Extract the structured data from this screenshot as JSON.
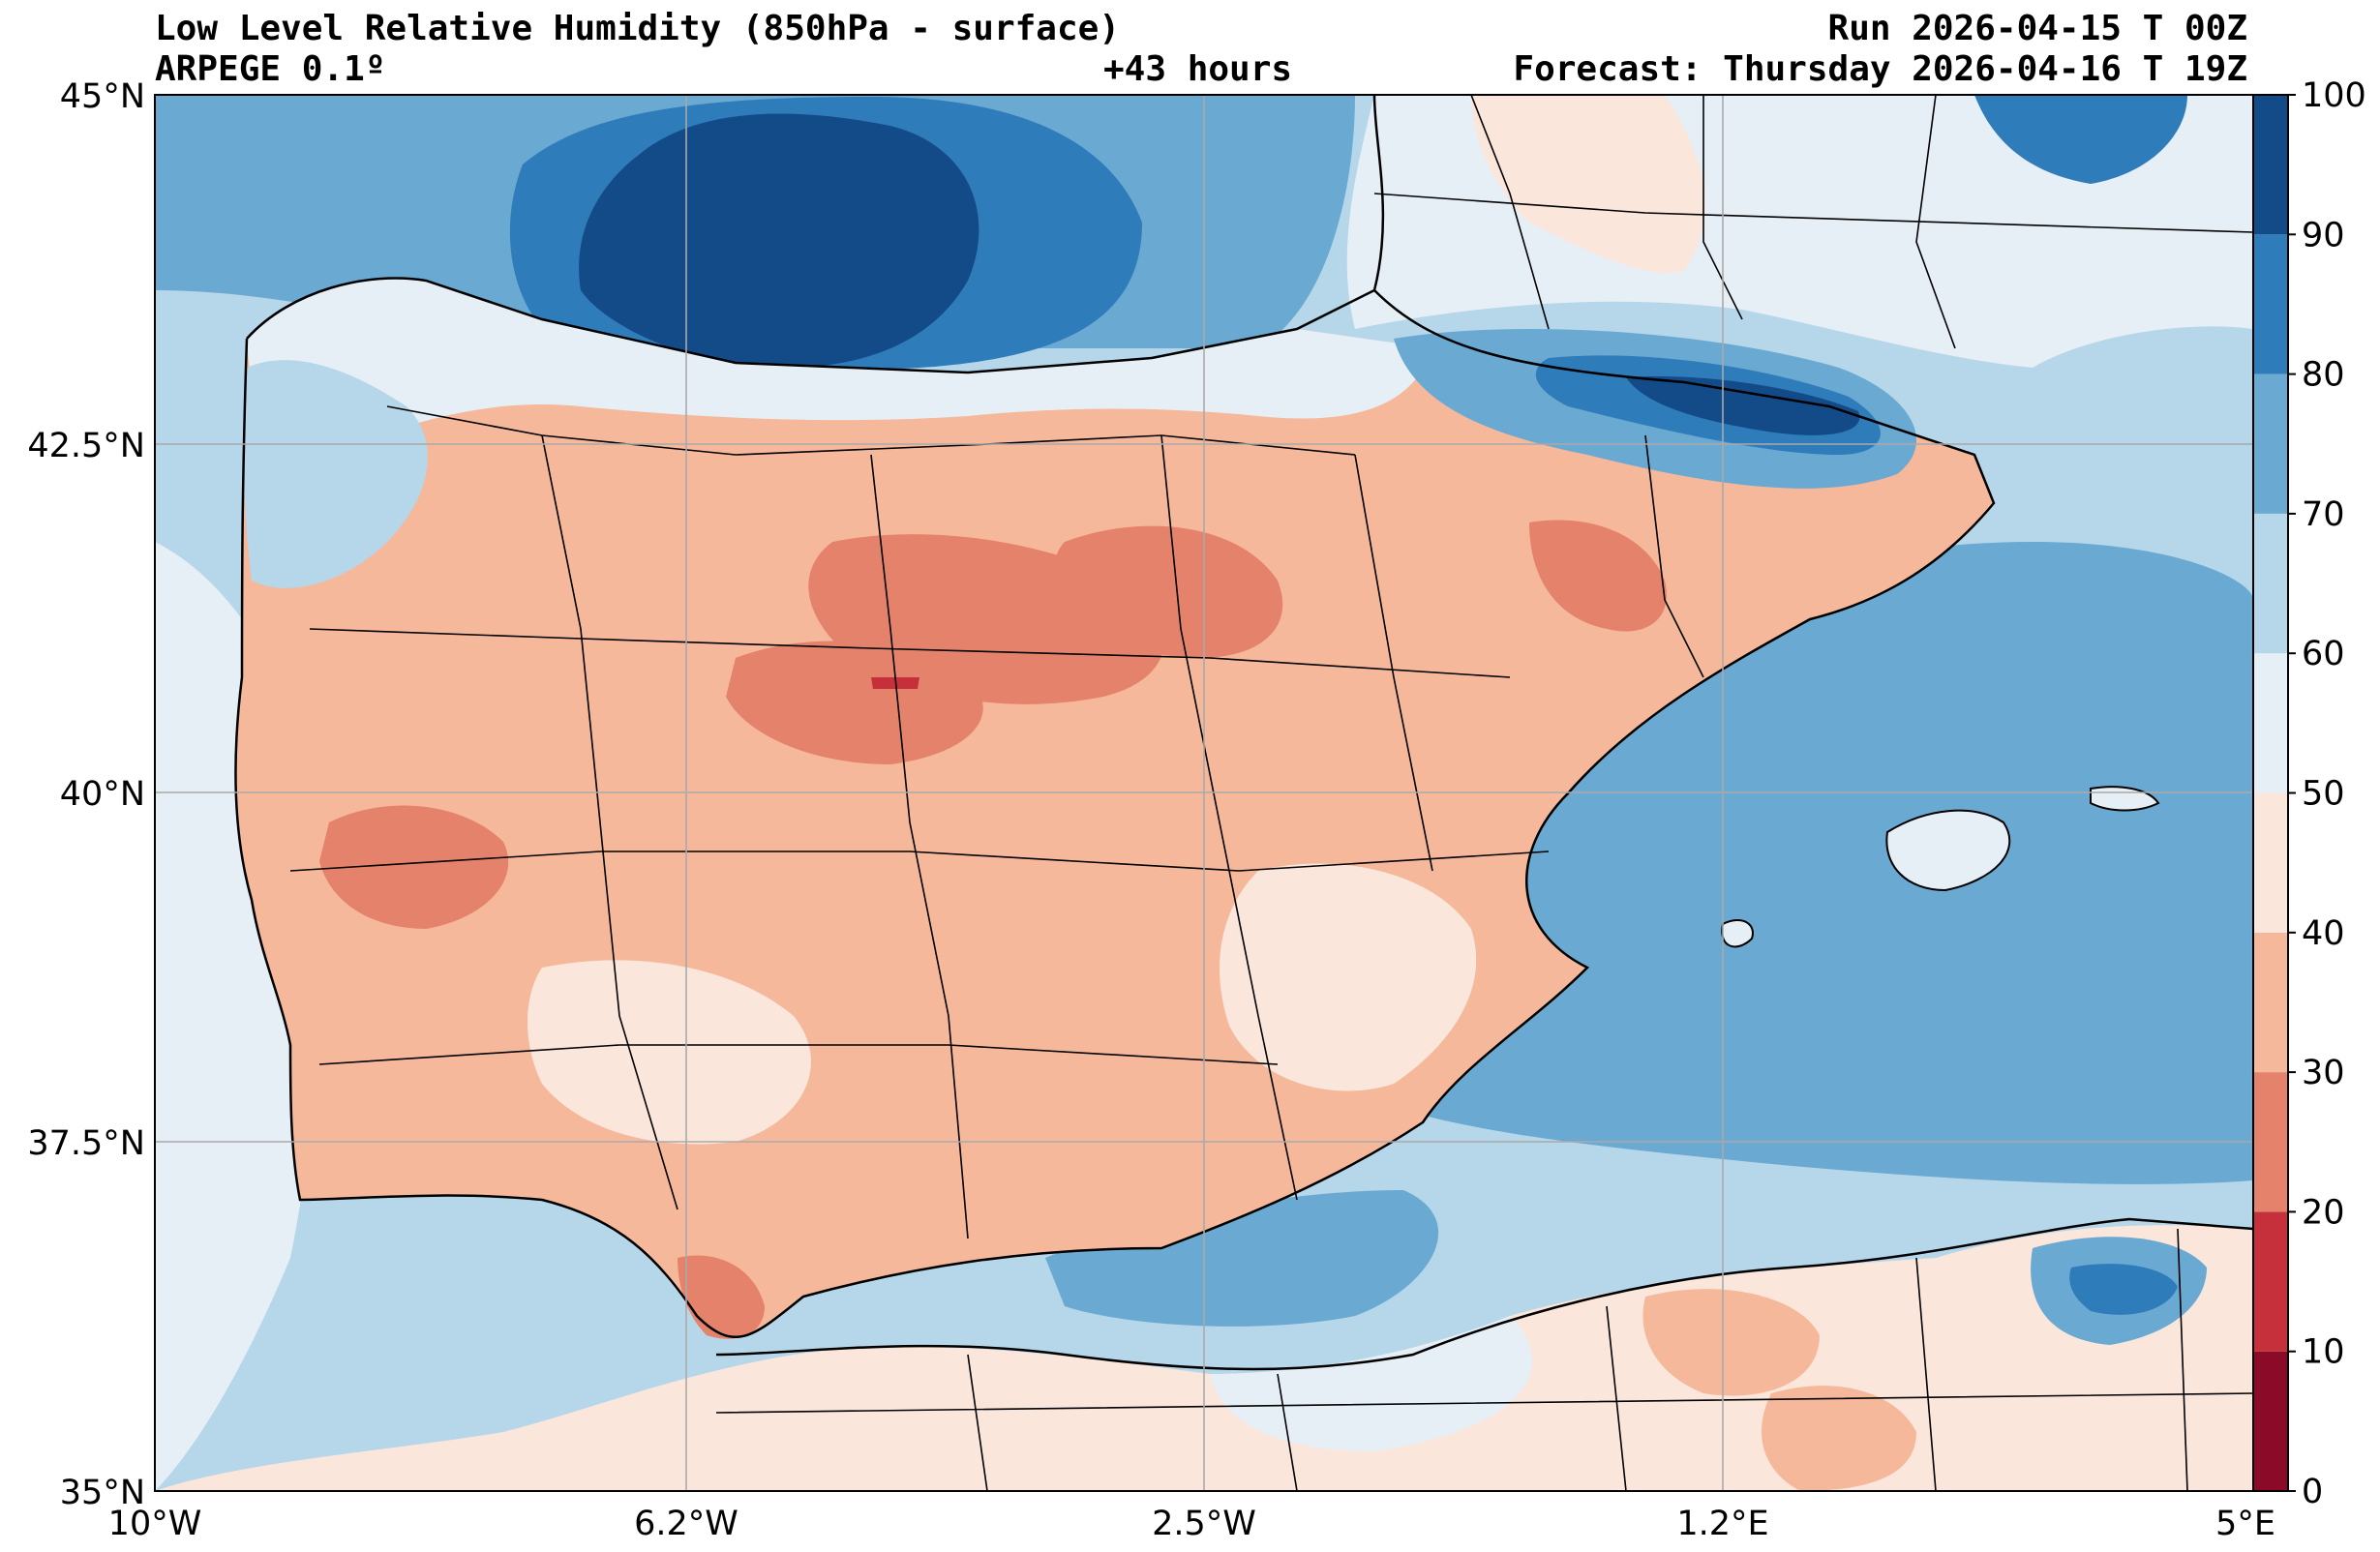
{
  "header": {
    "title_left": "Low Level Relative Humidity (850hPa - surface)",
    "model": "ARPEGE 0.1º",
    "lead": "+43 hours",
    "run": "Run 2026-04-15 T 00Z",
    "forecast": "Forecast: Thursday 2026-04-16 T 19Z"
  },
  "axes": {
    "lat_labels": [
      "45°N",
      "42.5°N",
      "40°N",
      "37.5°N",
      "35°N"
    ],
    "lon_labels": [
      "10°W",
      "6.2°W",
      "2.5°W",
      "1.2°E",
      "5°E"
    ],
    "lat_range": [
      35,
      45
    ],
    "lon_range": [
      -10,
      5
    ],
    "grid": true
  },
  "colorbar": {
    "levels": [
      "0",
      "10",
      "20",
      "30",
      "40",
      "50",
      "60",
      "70",
      "80",
      "90",
      "100"
    ],
    "colors": [
      "#8b0a27",
      "#c5303b",
      "#e5826b",
      "#f6b89b",
      "#fbe6dc",
      "#e6eff6",
      "#b6d6ea",
      "#6aa9d1",
      "#2f7cba",
      "#134b88"
    ],
    "orientation": "vertical",
    "placement": "right"
  },
  "map_colors": {
    "sea_background": "#b6d6ea",
    "land_background": "#f6b89b"
  }
}
